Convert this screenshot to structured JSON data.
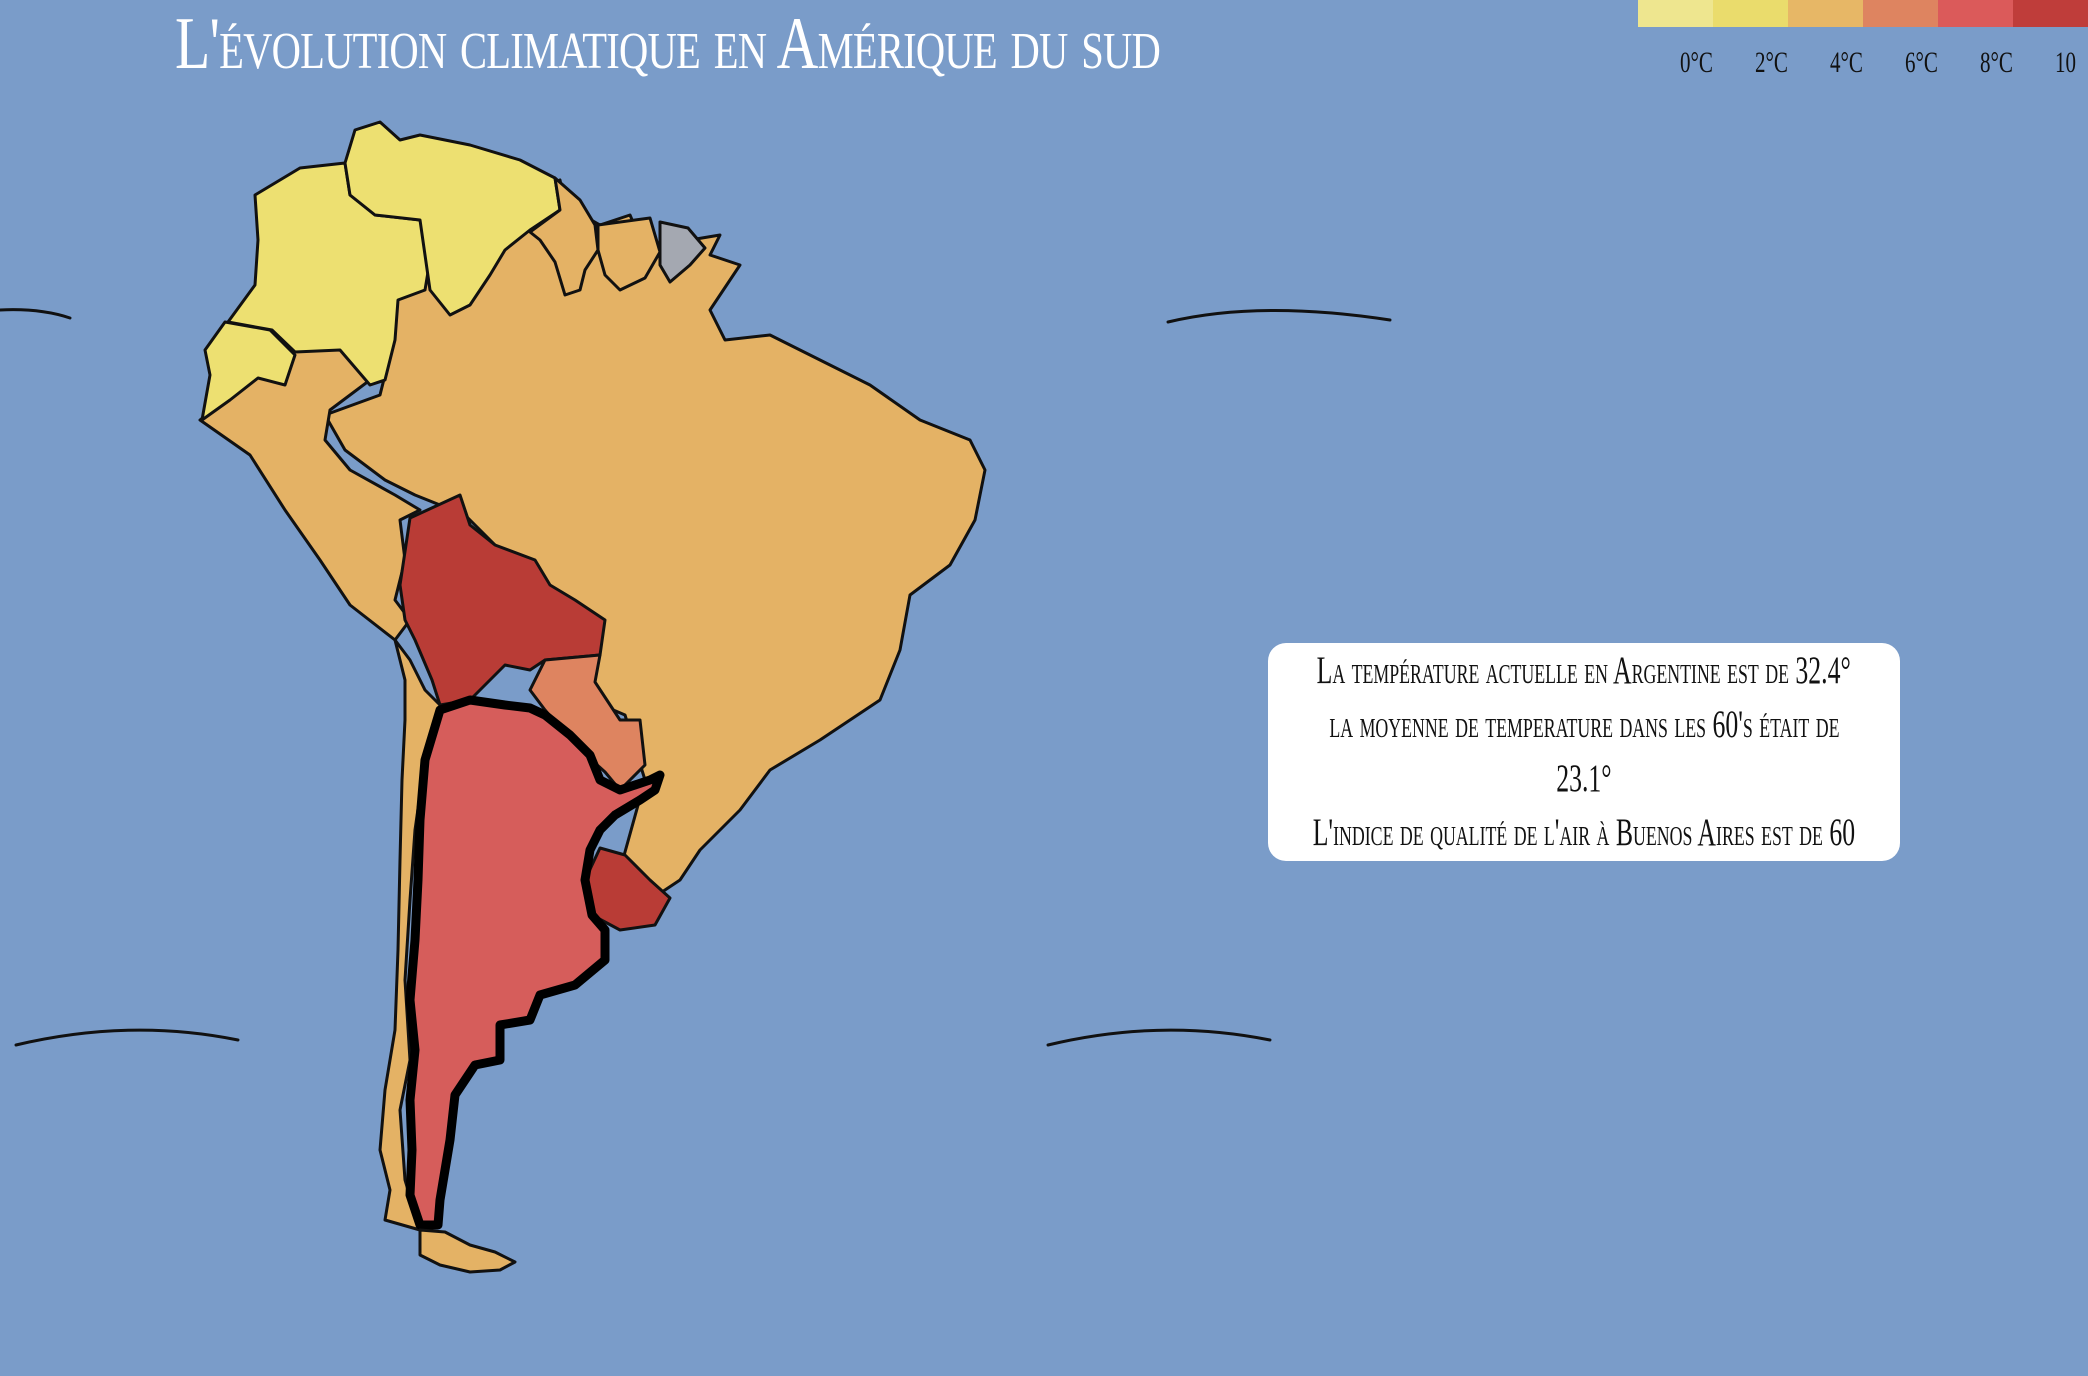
{
  "title": "L'évolution climatique en Amérique du sud",
  "legend": {
    "swatches": [
      "#eee68f",
      "#eadc6c",
      "#e7b766",
      "#de8460",
      "#db5a5a",
      "#bf3d3a"
    ],
    "ticks": [
      "0°C",
      "2°C",
      "4°C",
      "6°C",
      "8°C",
      "10"
    ]
  },
  "map": {
    "ocean_color": "#7a9cc9",
    "countries": [
      {
        "name": "colombia",
        "color": "#ede071"
      },
      {
        "name": "venezuela",
        "color": "#ede071"
      },
      {
        "name": "ecuador",
        "color": "#ede071"
      },
      {
        "name": "guyana",
        "color": "#e4b265"
      },
      {
        "name": "suriname",
        "color": "#e4b265"
      },
      {
        "name": "french-guiana",
        "color": "#a4a8b1"
      },
      {
        "name": "brazil",
        "color": "#e4b265"
      },
      {
        "name": "peru",
        "color": "#e4b265"
      },
      {
        "name": "bolivia",
        "color": "#b93c36"
      },
      {
        "name": "paraguay",
        "color": "#de8460"
      },
      {
        "name": "uruguay",
        "color": "#b93c36"
      },
      {
        "name": "chile",
        "color": "#e4b265"
      },
      {
        "name": "argentina",
        "color": "#d65d5b",
        "selected": true
      }
    ]
  },
  "info": {
    "lines": [
      "La température actuelle en Argentine est de 32.4°",
      "la moyenne de temperature dans les 60's était de",
      "23.1°",
      "L'indice de qualité de l'air à Buenos Aires est de 60"
    ]
  }
}
